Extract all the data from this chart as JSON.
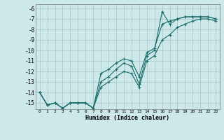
{
  "xlabel": "Humidex (Indice chaleur)",
  "background_color": "#cce8e8",
  "grid_color": "#b0d0d0",
  "line_color": "#1a6b6b",
  "xlim": [
    -0.5,
    23.5
  ],
  "ylim": [
    -15.6,
    -5.6
  ],
  "yticks": [
    -15,
    -14,
    -13,
    -12,
    -11,
    -10,
    -9,
    -8,
    -7,
    -6
  ],
  "xticks": [
    0,
    1,
    2,
    3,
    4,
    5,
    6,
    7,
    8,
    9,
    10,
    11,
    12,
    13,
    14,
    15,
    16,
    17,
    18,
    19,
    20,
    21,
    22,
    23
  ],
  "line1_x": [
    0,
    1,
    2,
    3,
    4,
    5,
    6,
    7,
    8,
    9,
    10,
    11,
    12,
    13,
    14,
    15,
    16,
    17,
    18,
    19,
    20,
    21,
    22,
    23
  ],
  "line1_y": [
    -14.0,
    -15.2,
    -15.0,
    -15.5,
    -15.0,
    -15.0,
    -15.0,
    -15.5,
    -13.0,
    -12.5,
    -11.8,
    -11.2,
    -11.5,
    -13.2,
    -10.5,
    -10.0,
    -6.3,
    -7.5,
    -7.0,
    -6.8,
    -6.8,
    -6.8,
    -6.8,
    -7.0
  ],
  "line2_x": [
    0,
    1,
    2,
    3,
    4,
    5,
    6,
    7,
    8,
    9,
    10,
    11,
    12,
    13,
    14,
    15,
    16,
    17,
    18,
    19,
    20,
    21,
    22,
    23
  ],
  "line2_y": [
    -14.0,
    -15.2,
    -15.0,
    -15.5,
    -15.0,
    -15.0,
    -15.0,
    -15.5,
    -12.2,
    -11.8,
    -11.2,
    -10.8,
    -11.0,
    -12.5,
    -10.2,
    -9.8,
    -7.5,
    -7.2,
    -7.0,
    -6.8,
    -6.8,
    -6.8,
    -6.8,
    -7.0
  ],
  "line3_x": [
    0,
    1,
    2,
    3,
    4,
    5,
    6,
    7,
    8,
    9,
    10,
    11,
    12,
    13,
    14,
    15,
    16,
    17,
    18,
    19,
    20,
    21,
    22,
    23
  ],
  "line3_y": [
    -14.0,
    -15.2,
    -15.0,
    -15.5,
    -15.0,
    -15.0,
    -15.0,
    -15.5,
    -13.5,
    -13.0,
    -12.5,
    -12.0,
    -12.2,
    -13.5,
    -11.0,
    -10.5,
    -9.0,
    -8.5,
    -7.8,
    -7.5,
    -7.2,
    -7.0,
    -7.0,
    -7.2
  ]
}
